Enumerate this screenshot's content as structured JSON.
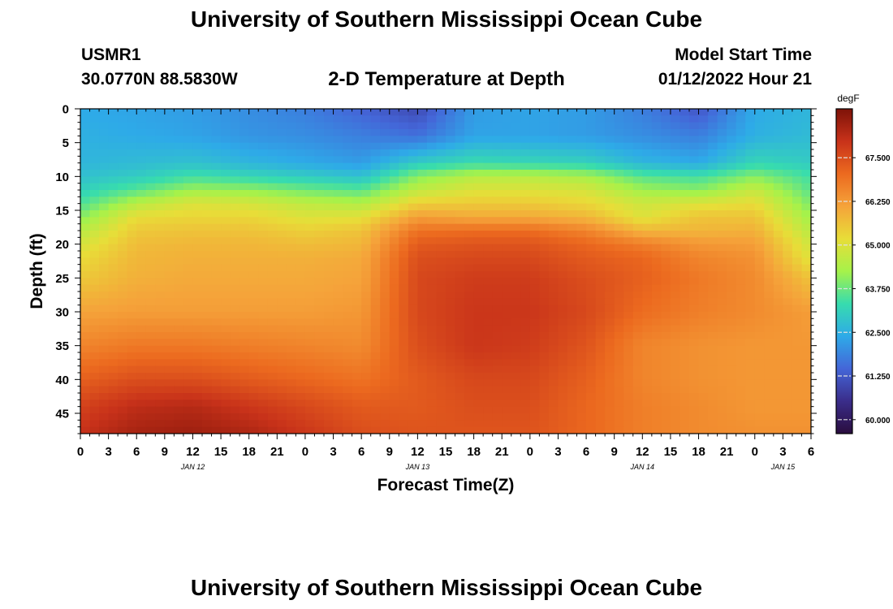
{
  "header": {
    "title": "University of Southern Mississippi Ocean Cube",
    "station_id": "USMR1",
    "station_coords": "30.0770N  88.5830W",
    "plot_title": "2-D Temperature at Depth",
    "start_label": "Model Start Time",
    "start_time": "01/12/2022 Hour 21",
    "bottom_title": "University of Southern Mississippi Ocean Cube"
  },
  "chart_data": {
    "type": "heatmap",
    "title": "2-D Temperature at Depth",
    "xlabel": "Forecast Time(Z)",
    "ylabel": "Depth (ft)",
    "colorbar_label": "degF",
    "x_tick_labels": [
      "0",
      "3",
      "6",
      "9",
      "12",
      "15",
      "18",
      "21",
      "0",
      "3",
      "6",
      "9",
      "12",
      "15",
      "18",
      "21",
      "0",
      "3",
      "6",
      "9",
      "12",
      "15",
      "18",
      "21",
      "0",
      "3",
      "6"
    ],
    "date_labels": [
      {
        "label": "JAN 12",
        "hour": 12
      },
      {
        "label": "JAN 13",
        "hour": 36
      },
      {
        "label": "JAN 14",
        "hour": 60
      },
      {
        "label": "JAN 15",
        "hour": 75
      }
    ],
    "x_range_hours": [
      0,
      78
    ],
    "y_ticks": [
      0,
      5,
      10,
      15,
      20,
      25,
      30,
      35,
      40,
      45
    ],
    "ylim": [
      0,
      48
    ],
    "y_inverted": true,
    "colorbar_ticks": [
      60.0,
      61.25,
      62.5,
      63.75,
      65.0,
      66.25,
      67.5
    ],
    "colorbar_tick_labels": [
      "60.000",
      "61.250",
      "62.500",
      "63.750",
      "65.000",
      "66.250",
      "67.500"
    ],
    "colorbar_range": [
      59.6,
      68.9
    ],
    "colormap": [
      "#2a0d3e",
      "#3a2d8a",
      "#4466d8",
      "#2eaae8",
      "#37dcae",
      "#a6f24a",
      "#e8dd38",
      "#f5a33a",
      "#ec6a1f",
      "#c8321a",
      "#7d1208"
    ],
    "grid_hours": [
      0,
      6,
      12,
      18,
      24,
      30,
      36,
      42,
      48,
      54,
      60,
      66,
      72,
      78
    ],
    "grid_depths": [
      0,
      4,
      8,
      10,
      12,
      14,
      16,
      18,
      20,
      22,
      25,
      30,
      35,
      40,
      44,
      48
    ],
    "temperature": [
      [
        62.4,
        62.3,
        62.2,
        62.0,
        61.8,
        61.4,
        61.0,
        62.2,
        62.3,
        62.2,
        61.8,
        61.2,
        62.4,
        62.6
      ],
      [
        62.5,
        62.4,
        62.3,
        62.1,
        62.0,
        61.8,
        61.6,
        62.3,
        62.3,
        62.2,
        62.0,
        61.8,
        62.5,
        62.7
      ],
      [
        62.6,
        62.7,
        62.8,
        62.6,
        62.4,
        62.2,
        63.0,
        63.3,
        63.2,
        63.1,
        62.6,
        62.4,
        63.2,
        63.0
      ],
      [
        62.8,
        63.0,
        63.4,
        63.2,
        63.0,
        62.8,
        64.0,
        64.5,
        64.5,
        64.3,
        63.6,
        63.4,
        64.0,
        63.4
      ],
      [
        63.1,
        63.6,
        64.2,
        64.1,
        63.8,
        63.6,
        64.6,
        65.0,
        65.0,
        64.9,
        64.2,
        64.0,
        64.7,
        63.6
      ],
      [
        63.5,
        64.5,
        65.0,
        64.9,
        64.6,
        64.4,
        65.4,
        65.5,
        65.5,
        65.3,
        64.8,
        65.0,
        65.2,
        63.9
      ],
      [
        64.0,
        65.2,
        65.3,
        65.3,
        65.0,
        65.1,
        66.2,
        66.0,
        66.0,
        65.8,
        65.0,
        65.6,
        65.6,
        64.2
      ],
      [
        64.5,
        65.5,
        65.6,
        65.6,
        65.4,
        65.6,
        66.9,
        67.0,
        67.0,
        66.6,
        65.8,
        65.8,
        65.9,
        64.5
      ],
      [
        64.9,
        65.7,
        65.8,
        65.8,
        65.7,
        65.8,
        67.3,
        67.4,
        67.4,
        67.1,
        66.7,
        66.3,
        66.2,
        64.8
      ],
      [
        65.2,
        65.8,
        65.9,
        65.9,
        65.9,
        66.0,
        67.5,
        67.6,
        67.6,
        67.3,
        67.1,
        66.6,
        66.4,
        65.0
      ],
      [
        65.5,
        65.9,
        66.0,
        66.0,
        66.0,
        66.1,
        67.6,
        67.8,
        67.8,
        67.5,
        67.2,
        66.8,
        66.5,
        65.6
      ],
      [
        66.1,
        66.2,
        66.2,
        66.2,
        66.2,
        66.3,
        67.6,
        67.9,
        67.9,
        67.6,
        67.0,
        66.7,
        66.5,
        66.2
      ],
      [
        66.6,
        66.8,
        66.8,
        66.7,
        66.6,
        66.5,
        67.5,
        67.9,
        67.8,
        67.4,
        66.6,
        66.4,
        66.3,
        66.3
      ],
      [
        67.2,
        67.5,
        67.5,
        67.3,
        67.1,
        66.9,
        67.3,
        67.6,
        67.6,
        67.2,
        66.6,
        66.4,
        66.3,
        66.3
      ],
      [
        67.7,
        68.1,
        68.2,
        67.9,
        67.6,
        67.3,
        67.3,
        67.5,
        67.5,
        67.1,
        66.7,
        66.5,
        66.3,
        66.3
      ],
      [
        68.0,
        68.4,
        68.5,
        68.3,
        67.9,
        67.5,
        67.4,
        67.4,
        67.4,
        67.1,
        66.7,
        66.5,
        66.4,
        66.4
      ]
    ]
  }
}
